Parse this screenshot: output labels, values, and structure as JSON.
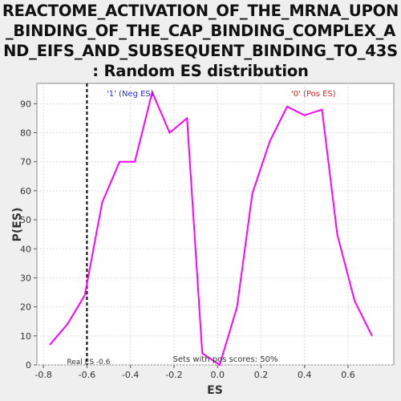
{
  "chart_data": {
    "type": "line",
    "title_lines": [
      "REACTOME_ACTIVATION_OF_THE_MRNA_UPON",
      "_BINDING_OF_THE_CAP_BINDING_COMPLEX_A",
      "ND_EIFS_AND_SUBSEQUENT_BINDING_TO_43S",
      ": Random ES distribution"
    ],
    "xlabel": "ES",
    "ylabel": "P(ES)",
    "xlim": [
      -0.83,
      0.81
    ],
    "ylim": [
      0,
      97
    ],
    "xticks": [
      -0.8,
      -0.6,
      -0.4,
      -0.2,
      0.0,
      0.2,
      0.4,
      0.6
    ],
    "xtick_labels": [
      "-0.8",
      "-0.6",
      "-0.4",
      "-0.2",
      "0.0",
      "0.2",
      "0.4",
      "0.6"
    ],
    "yticks": [
      0,
      10,
      20,
      30,
      40,
      50,
      60,
      70,
      80,
      90
    ],
    "ytick_labels": [
      "0",
      "10",
      "20",
      "30",
      "40",
      "50",
      "60",
      "70",
      "80",
      "90"
    ],
    "grid": true,
    "line_color": "#ff00ff",
    "series": [
      {
        "x": [
          -0.77,
          -0.69,
          -0.61,
          -0.53,
          -0.45,
          -0.38,
          -0.3,
          -0.22,
          -0.14,
          -0.07,
          0.01,
          0.09,
          0.16,
          0.24,
          0.32,
          0.4,
          0.48,
          0.55,
          0.63,
          0.71
        ],
        "y": [
          7,
          14,
          24,
          56,
          70,
          70,
          94,
          80,
          85,
          4,
          0,
          20,
          59,
          77,
          89,
          86,
          88,
          45,
          22,
          10
        ]
      }
    ],
    "real_es": {
      "x": -0.6,
      "label": "Real ES -0.6",
      "color": "#000000"
    },
    "annotations": {
      "neg_label": "'1' (Neg ES)",
      "neg_color": "#2b2bd8",
      "pos_label": "'0' (Pos ES)",
      "pos_color": "#e02020",
      "footer": "Sets with pos scores: 50%"
    }
  }
}
